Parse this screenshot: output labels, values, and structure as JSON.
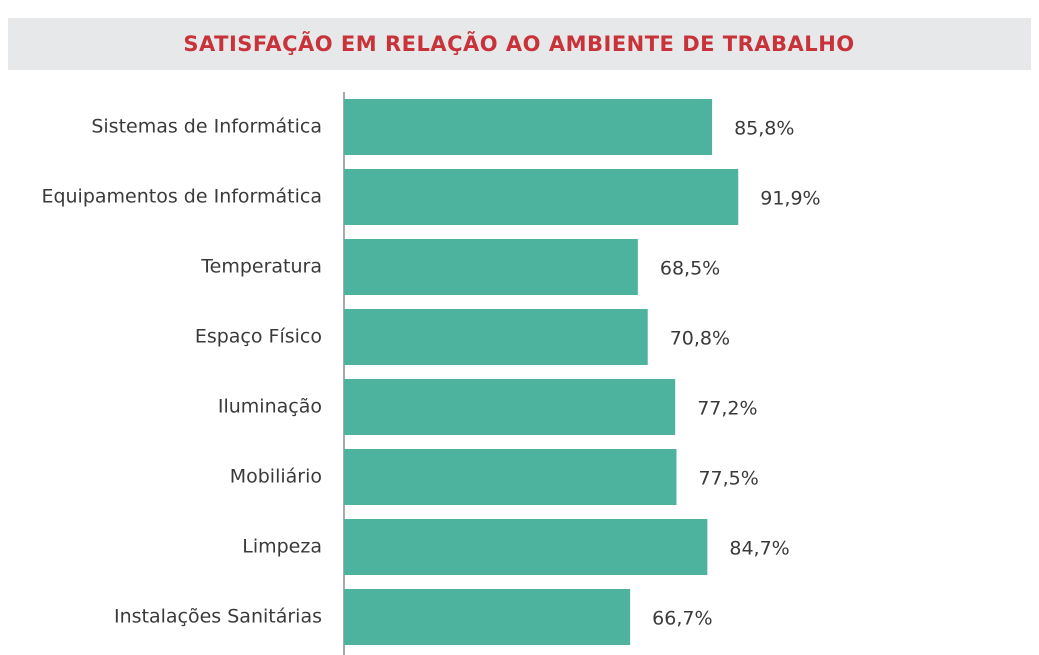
{
  "chart_data": {
    "type": "bar",
    "orientation": "horizontal",
    "title": "SATISFAÇÃO EM RELAÇÃO AO AMBIENTE DE TRABALHO",
    "categories": [
      "Sistemas de Informática",
      "Equipamentos de Informática",
      "Temperatura",
      "Espaço Físico",
      "Iluminação",
      "Mobiliário",
      "Limpeza",
      "Instalações Sanitárias"
    ],
    "values": [
      85.8,
      91.9,
      68.5,
      70.8,
      77.2,
      77.5,
      84.7,
      66.7
    ],
    "value_labels": [
      "85,8%",
      "91,9%",
      "68,5%",
      "70,8%",
      "77,2%",
      "77,5%",
      "84,7%",
      "66,7%"
    ],
    "color": "#4db39e"
  }
}
